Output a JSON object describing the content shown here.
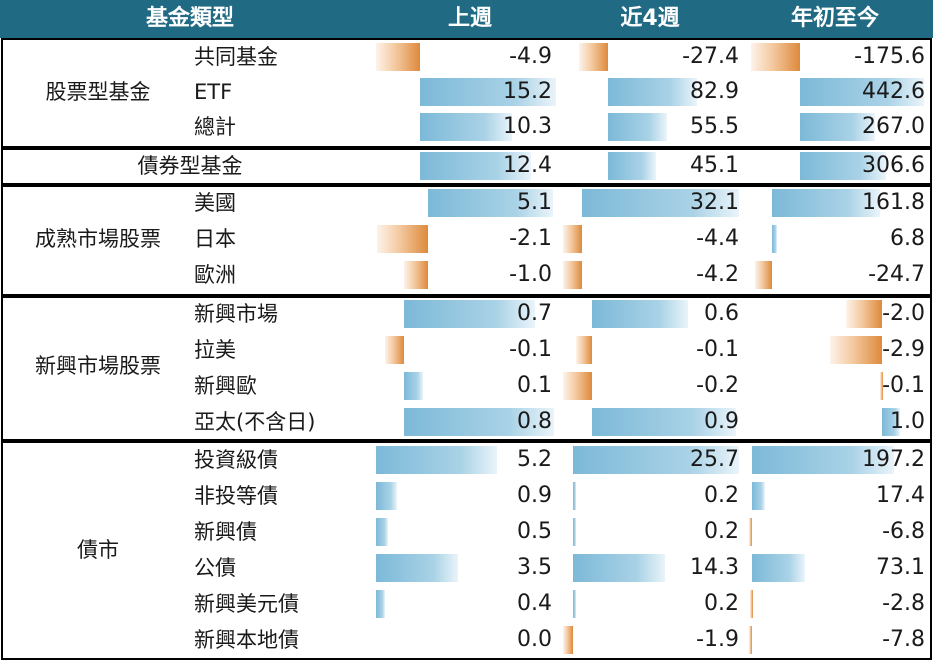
{
  "header": {
    "category": "基金類型",
    "col1": "上週",
    "col2": "近4週",
    "col3": "年初至今"
  },
  "groups": [
    {
      "label": "股票型基金",
      "rows": [
        {
          "name": "共同基金",
          "v": [
            "-4.9",
            "-27.4",
            "-175.6"
          ]
        },
        {
          "name": "ETF",
          "v": [
            "15.2",
            "82.9",
            "442.6"
          ]
        },
        {
          "name": "總計",
          "v": [
            "10.3",
            "55.5",
            "267.0"
          ]
        }
      ]
    },
    {
      "label": "債券型基金",
      "rows": [
        {
          "name": "",
          "v": [
            "12.4",
            "45.1",
            "306.6"
          ]
        }
      ]
    },
    {
      "label": "成熟市場股票",
      "rows": [
        {
          "name": "美國",
          "v": [
            "5.1",
            "32.1",
            "161.8"
          ]
        },
        {
          "name": "日本",
          "v": [
            "-2.1",
            "-4.4",
            "6.8"
          ]
        },
        {
          "name": "歐洲",
          "v": [
            "-1.0",
            "-4.2",
            "-24.7"
          ]
        }
      ]
    },
    {
      "label": "新興市場股票",
      "rows": [
        {
          "name": "新興市場",
          "v": [
            "0.7",
            "0.6",
            "-2.0"
          ]
        },
        {
          "name": "拉美",
          "v": [
            "-0.1",
            "-0.1",
            "-2.9"
          ]
        },
        {
          "name": "新興歐",
          "v": [
            "0.1",
            "-0.2",
            "-0.1"
          ]
        },
        {
          "name": "亞太(不含日)",
          "v": [
            "0.8",
            "0.9",
            "1.0"
          ]
        }
      ]
    },
    {
      "label": "債市",
      "rows": [
        {
          "name": "投資級債",
          "v": [
            "5.2",
            "25.7",
            "197.2"
          ]
        },
        {
          "name": "非投等債",
          "v": [
            "0.9",
            "0.2",
            "17.4"
          ]
        },
        {
          "name": "新興債",
          "v": [
            "0.5",
            "0.2",
            "-6.8"
          ]
        },
        {
          "name": "公債",
          "v": [
            "3.5",
            "14.3",
            "73.1"
          ]
        },
        {
          "name": "新興美元債",
          "v": [
            "0.4",
            "0.2",
            "-2.8"
          ]
        },
        {
          "name": "新興本地債",
          "v": [
            "0.0",
            "-1.9",
            "-7.8"
          ]
        }
      ]
    }
  ],
  "colors": {
    "header_bg": "#216a83",
    "positive_bar": "#7cb9d8",
    "negative_bar": "#dd8a3c"
  }
}
